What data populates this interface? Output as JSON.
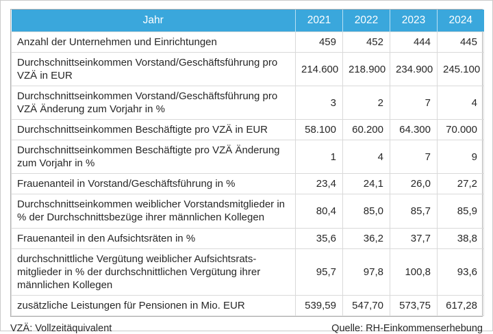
{
  "colors": {
    "header_bg": "#3aa7dc",
    "header_text": "#ffffff",
    "body_text": "#262626",
    "border_outer": "#b3b3b3",
    "border_inner": "#d9d9d9"
  },
  "table": {
    "header": {
      "label": "Jahr",
      "years": [
        "2021",
        "2022",
        "2023",
        "2024"
      ]
    },
    "rows": [
      {
        "label": "Anzahl der Unternehmen und Einrichtungen",
        "values": [
          "459",
          "452",
          "444",
          "445"
        ]
      },
      {
        "label": "Durchschnittseinkommen Vorstand/Geschäftsführung pro VZÄ in EUR",
        "values": [
          "214.600",
          "218.900",
          "234.900",
          "245.100"
        ]
      },
      {
        "label": "Durchschnittseinkommen Vorstand/Geschäftsführung pro VZÄ Änderung zum Vorjahr in %",
        "values": [
          "3",
          "2",
          "7",
          "4"
        ]
      },
      {
        "label": "Durchschnittseinkommen Beschäftigte pro VZÄ in EUR",
        "values": [
          "58.100",
          "60.200",
          "64.300",
          "70.000"
        ]
      },
      {
        "label": "Durchschnittseinkommen Beschäftigte pro VZÄ Änderung zum Vorjahr in %",
        "values": [
          "1",
          "4",
          "7",
          "9"
        ]
      },
      {
        "label": "Frauenanteil in Vorstand/Geschäftsführung in %",
        "values": [
          "23,4",
          "24,1",
          "26,0",
          "27,2"
        ]
      },
      {
        "label": "Durchschnittseinkommen weiblicher Vorstandsmitglieder in % der Durchschnittsbezüge ihrer männlichen Kollegen",
        "values": [
          "80,4",
          "85,0",
          "85,7",
          "85,9"
        ]
      },
      {
        "label": "Frauenanteil in den Aufsichtsräten in %",
        "values": [
          "35,6",
          "36,2",
          "37,7",
          "38,8"
        ]
      },
      {
        "label": "durchschnittliche Vergütung weiblicher Aufsichtsrats-mitglieder in % der durchschnittlichen Vergütung ihrer männlichen Kollegen",
        "values": [
          "95,7",
          "97,8",
          "100,8",
          "93,6"
        ]
      },
      {
        "label": "zusätzliche Leistungen für Pensionen in Mio. EUR",
        "values": [
          "539,59",
          "547,70",
          "573,75",
          "617,28"
        ]
      }
    ]
  },
  "footnotes": {
    "left": "VZÄ: Vollzeitäquivalent",
    "right": "Quelle: RH-Einkommenserhebung"
  }
}
